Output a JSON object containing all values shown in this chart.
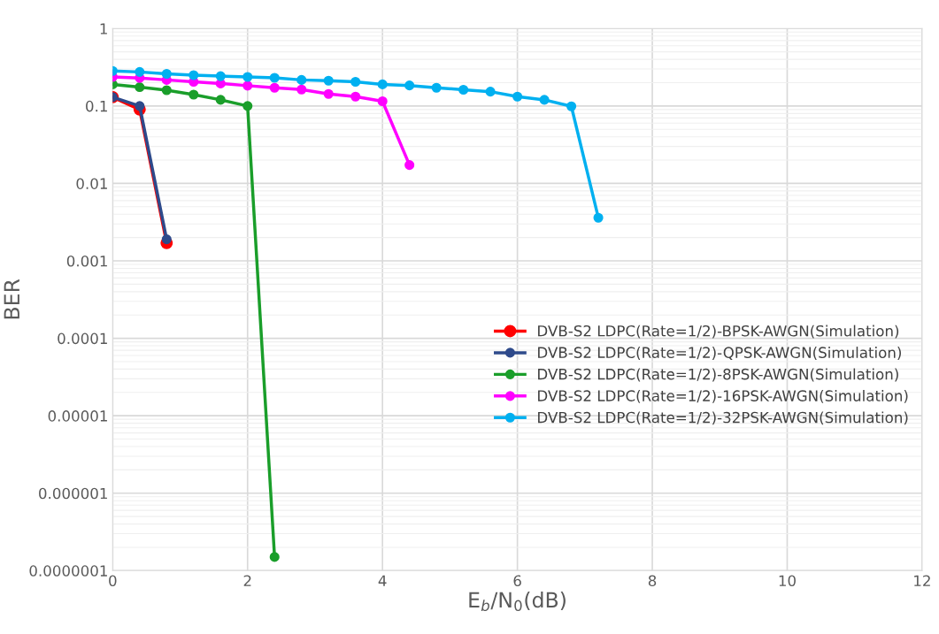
{
  "chart_data": {
    "type": "line",
    "xlabel": "E$_{b}$/N$_{0}$(dB)",
    "ylabel": "BER",
    "log": "y",
    "grid": true,
    "legend": "right",
    "marker": "circle",
    "line_style": "solid",
    "xlim": [
      0,
      12
    ],
    "xticks": [
      0,
      2,
      4,
      6,
      8,
      10,
      12
    ],
    "ylim": [
      1e-07,
      1
    ],
    "yticks": [
      1,
      {
        "value": 0.1,
        "label": "0.1"
      },
      {
        "value": 0.01,
        "label": "0.01"
      },
      {
        "value": 0.001,
        "label": "0.001"
      },
      {
        "value": 0.0001,
        "label": "0.0001"
      },
      {
        "value": 1e-05,
        "label": "0.00001"
      },
      {
        "value": 1e-06,
        "label": "0.000001"
      },
      {
        "value": 1e-07,
        "label": "0.0000001"
      }
    ],
    "series": [
      {
        "name": "DVB-S2 LDPC(Rate=1/2)-BPSK-AWGN(Simulation)",
        "color": "#ff0000",
        "x": [
          0,
          0.4,
          0.8
        ],
        "values": [
          0.13,
          0.09,
          0.0017
        ]
      },
      {
        "name": "DVB-S2 LDPC(Rate=1/2)-QPSK-AWGN(Simulation)",
        "color": "#2e4a8b",
        "x": [
          0,
          0.4,
          0.8
        ],
        "values": [
          0.13,
          0.1,
          0.0019
        ]
      },
      {
        "name": "DVB-S2 LDPC(Rate=1/2)-8PSK-AWGN(Simulation)",
        "color": "#1a9e2a",
        "x": [
          0,
          0.4,
          0.8,
          1.2,
          1.6,
          2.0,
          2.4
        ],
        "values": [
          0.19,
          0.175,
          0.16,
          0.14,
          0.12,
          0.1,
          1.5e-07
        ]
      },
      {
        "name": "DVB-S2 LDPC(Rate=1/2)-16PSK-AWGN(Simulation)",
        "color": "#ff00ff",
        "x": [
          0,
          0.4,
          0.8,
          1.2,
          1.6,
          2.0,
          2.4,
          2.8,
          3.2,
          3.6,
          4.0,
          4.4
        ],
        "values": [
          0.237,
          0.23,
          0.217,
          0.205,
          0.195,
          0.183,
          0.172,
          0.163,
          0.143,
          0.132,
          0.115,
          0.0173
        ]
      },
      {
        "name": "DVB-S2 LDPC(Rate=1/2)-32PSK-AWGN(Simulation)",
        "color": "#00b0f0",
        "x": [
          0,
          0.4,
          0.8,
          1.2,
          1.6,
          2.0,
          2.4,
          2.8,
          3.2,
          3.6,
          4.0,
          4.4,
          4.8,
          5.2,
          5.6,
          6.0,
          6.4,
          6.8,
          7.2
        ],
        "values": [
          0.283,
          0.275,
          0.26,
          0.25,
          0.243,
          0.237,
          0.231,
          0.217,
          0.212,
          0.205,
          0.19,
          0.184,
          0.172,
          0.162,
          0.153,
          0.132,
          0.12,
          0.099,
          0.0036
        ]
      }
    ]
  }
}
